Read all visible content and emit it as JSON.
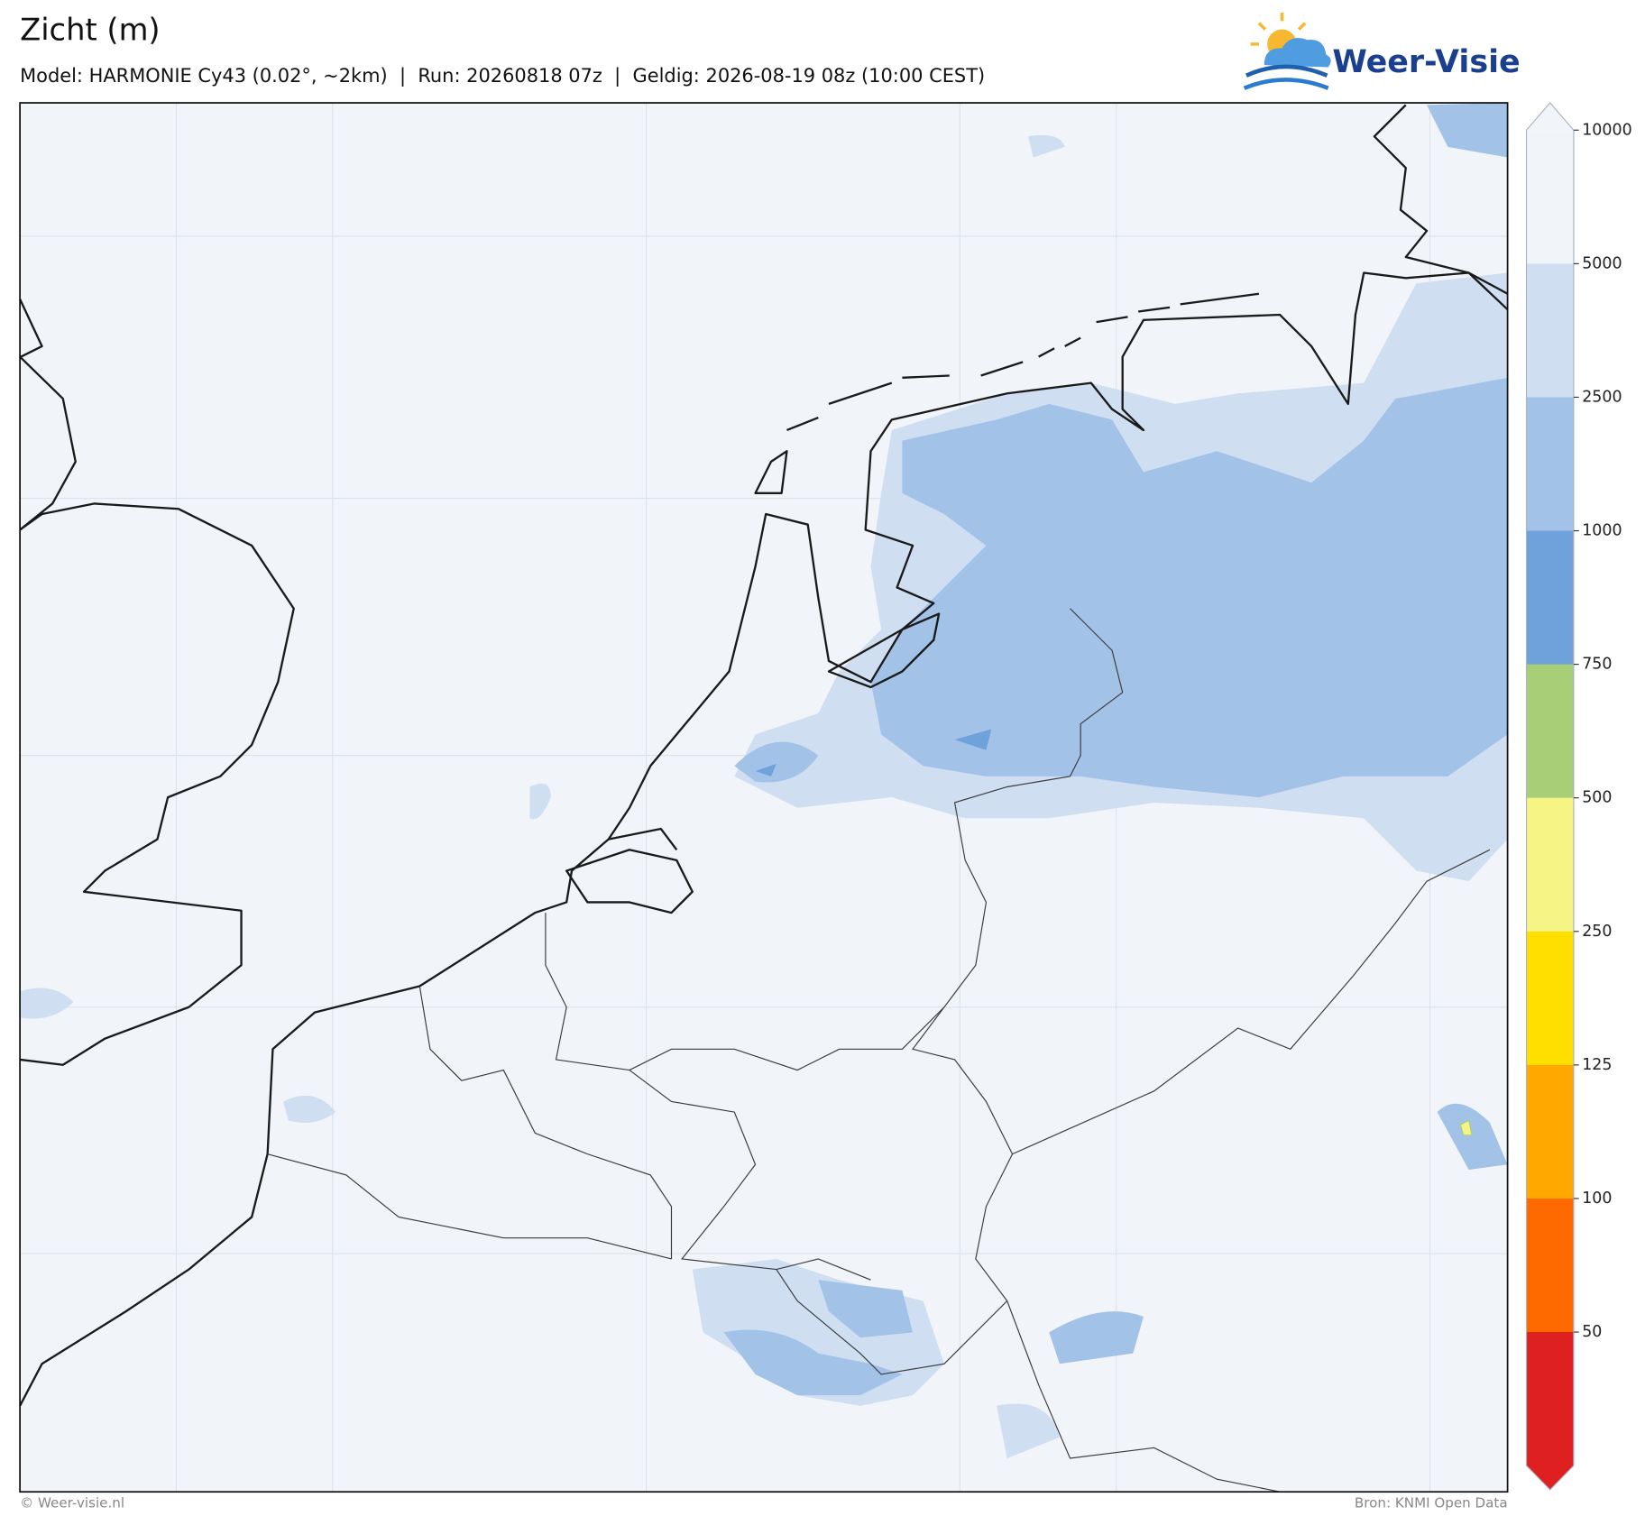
{
  "header": {
    "title": "Zicht (m)",
    "subtitle": "Model: HARMONIE Cy43 (0.02°, ~2km)  |  Run: 20260818 07z  |  Geldig: 2026-08-19 08z (10:00 CEST)",
    "logo": "Weer-Visie"
  },
  "legend": {
    "ticks": [
      10000,
      5000,
      2500,
      1000,
      750,
      500,
      250,
      125,
      100,
      50
    ],
    "colors": [
      "#f1f5fa",
      "#f1f5fa",
      "#cfdef1",
      "#a3c2e8",
      "#6fa1da",
      "#a8cf78",
      "#f5f484",
      "#ffdf00",
      "#ffa800",
      "#ff6a00",
      "#de2020"
    ]
  },
  "footer": {
    "left": "© Weer-visie.nl",
    "right": "Bron: KNMI Open Data"
  }
}
